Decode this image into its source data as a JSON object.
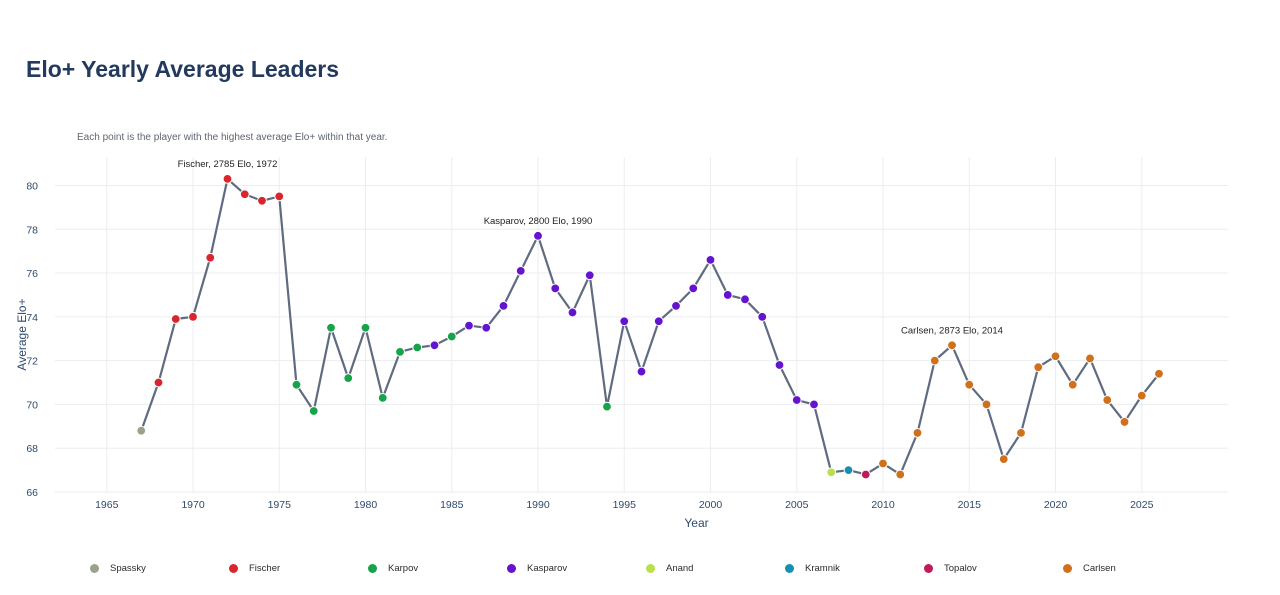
{
  "title": "Elo+ Yearly Average Leaders",
  "subtitle": "Each point is the player with the highest average Elo+ within that year.",
  "colors": {
    "line": "#5f6b80",
    "grid": "#ebedf0",
    "axis_text": "#2f4a6d",
    "Spassky": "#99a38a",
    "Fischer": "#d9252c",
    "Karpov": "#16a349",
    "Kasparov": "#6414cf",
    "Anand": "#b8e04a",
    "Kramnik": "#1590b3",
    "Topalov": "#be1a5c",
    "Carlsen": "#d1701a"
  },
  "chart_data": {
    "type": "line",
    "title": "Elo+ Yearly Average Leaders",
    "xlabel": "Year",
    "ylabel": "Average Elo+",
    "xlim": [
      1962,
      2030
    ],
    "ylim": [
      66,
      81.3
    ],
    "xticks": [
      1965,
      1970,
      1975,
      1980,
      1985,
      1990,
      1995,
      2000,
      2005,
      2010,
      2015,
      2020,
      2025
    ],
    "yticks": [
      66,
      68,
      70,
      72,
      74,
      76,
      78,
      80
    ],
    "grid": true,
    "legend_position": "bottom",
    "players": [
      "Spassky",
      "Fischer",
      "Karpov",
      "Kasparov",
      "Anand",
      "Kramnik",
      "Topalov",
      "Carlsen"
    ],
    "points": [
      {
        "x": 1967,
        "y": 68.8,
        "player": "Spassky"
      },
      {
        "x": 1968,
        "y": 71.0,
        "player": "Fischer"
      },
      {
        "x": 1969,
        "y": 73.9,
        "player": "Fischer"
      },
      {
        "x": 1970,
        "y": 74.0,
        "player": "Fischer"
      },
      {
        "x": 1971,
        "y": 76.7,
        "player": "Fischer"
      },
      {
        "x": 1972,
        "y": 80.3,
        "player": "Fischer"
      },
      {
        "x": 1973,
        "y": 79.6,
        "player": "Fischer"
      },
      {
        "x": 1974,
        "y": 79.3,
        "player": "Fischer"
      },
      {
        "x": 1975,
        "y": 79.5,
        "player": "Fischer"
      },
      {
        "x": 1976,
        "y": 70.9,
        "player": "Karpov"
      },
      {
        "x": 1977,
        "y": 69.7,
        "player": "Karpov"
      },
      {
        "x": 1978,
        "y": 73.5,
        "player": "Karpov"
      },
      {
        "x": 1979,
        "y": 71.2,
        "player": "Karpov"
      },
      {
        "x": 1980,
        "y": 73.5,
        "player": "Karpov"
      },
      {
        "x": 1981,
        "y": 70.3,
        "player": "Karpov"
      },
      {
        "x": 1982,
        "y": 72.4,
        "player": "Karpov"
      },
      {
        "x": 1983,
        "y": 72.6,
        "player": "Karpov"
      },
      {
        "x": 1984,
        "y": 72.7,
        "player": "Kasparov"
      },
      {
        "x": 1985,
        "y": 73.1,
        "player": "Karpov"
      },
      {
        "x": 1986,
        "y": 73.6,
        "player": "Kasparov"
      },
      {
        "x": 1987,
        "y": 73.5,
        "player": "Kasparov"
      },
      {
        "x": 1988,
        "y": 74.5,
        "player": "Kasparov"
      },
      {
        "x": 1989,
        "y": 76.1,
        "player": "Kasparov"
      },
      {
        "x": 1990,
        "y": 77.7,
        "player": "Kasparov"
      },
      {
        "x": 1991,
        "y": 75.3,
        "player": "Kasparov"
      },
      {
        "x": 1992,
        "y": 74.2,
        "player": "Kasparov"
      },
      {
        "x": 1993,
        "y": 75.9,
        "player": "Kasparov"
      },
      {
        "x": 1994,
        "y": 69.9,
        "player": "Karpov"
      },
      {
        "x": 1995,
        "y": 73.8,
        "player": "Kasparov"
      },
      {
        "x": 1996,
        "y": 71.5,
        "player": "Kasparov"
      },
      {
        "x": 1997,
        "y": 73.8,
        "player": "Kasparov"
      },
      {
        "x": 1998,
        "y": 74.5,
        "player": "Kasparov"
      },
      {
        "x": 1999,
        "y": 75.3,
        "player": "Kasparov"
      },
      {
        "x": 2000,
        "y": 76.6,
        "player": "Kasparov"
      },
      {
        "x": 2001,
        "y": 75.0,
        "player": "Kasparov"
      },
      {
        "x": 2002,
        "y": 74.8,
        "player": "Kasparov"
      },
      {
        "x": 2003,
        "y": 74.0,
        "player": "Kasparov"
      },
      {
        "x": 2004,
        "y": 71.8,
        "player": "Kasparov"
      },
      {
        "x": 2005,
        "y": 70.2,
        "player": "Kasparov"
      },
      {
        "x": 2006,
        "y": 70.0,
        "player": "Kasparov"
      },
      {
        "x": 2007,
        "y": 66.9,
        "player": "Anand"
      },
      {
        "x": 2008,
        "y": 67.0,
        "player": "Kramnik"
      },
      {
        "x": 2009,
        "y": 66.8,
        "player": "Topalov"
      },
      {
        "x": 2010,
        "y": 67.3,
        "player": "Carlsen"
      },
      {
        "x": 2011,
        "y": 66.8,
        "player": "Carlsen"
      },
      {
        "x": 2012,
        "y": 68.7,
        "player": "Carlsen"
      },
      {
        "x": 2013,
        "y": 72.0,
        "player": "Carlsen"
      },
      {
        "x": 2014,
        "y": 72.7,
        "player": "Carlsen"
      },
      {
        "x": 2015,
        "y": 70.9,
        "player": "Carlsen"
      },
      {
        "x": 2016,
        "y": 70.0,
        "player": "Carlsen"
      },
      {
        "x": 2017,
        "y": 67.5,
        "player": "Carlsen"
      },
      {
        "x": 2018,
        "y": 68.7,
        "player": "Carlsen"
      },
      {
        "x": 2019,
        "y": 71.7,
        "player": "Carlsen"
      },
      {
        "x": 2020,
        "y": 72.2,
        "player": "Carlsen"
      },
      {
        "x": 2021,
        "y": 70.9,
        "player": "Carlsen"
      },
      {
        "x": 2022,
        "y": 72.1,
        "player": "Carlsen"
      },
      {
        "x": 2023,
        "y": 70.2,
        "player": "Carlsen"
      },
      {
        "x": 2024,
        "y": 69.2,
        "player": "Carlsen"
      },
      {
        "x": 2025,
        "y": 70.4,
        "player": "Carlsen"
      },
      {
        "x": 2026,
        "y": 71.4,
        "player": "Carlsen"
      }
    ],
    "annotations": [
      {
        "text": "Fischer, 2785 Elo, 1972",
        "x": 1972,
        "y": 80.3
      },
      {
        "text": "Kasparov, 2800 Elo, 1990",
        "x": 1990,
        "y": 77.7
      },
      {
        "text": "Carlsen, 2873 Elo, 2014",
        "x": 2014,
        "y": 72.7
      }
    ]
  }
}
